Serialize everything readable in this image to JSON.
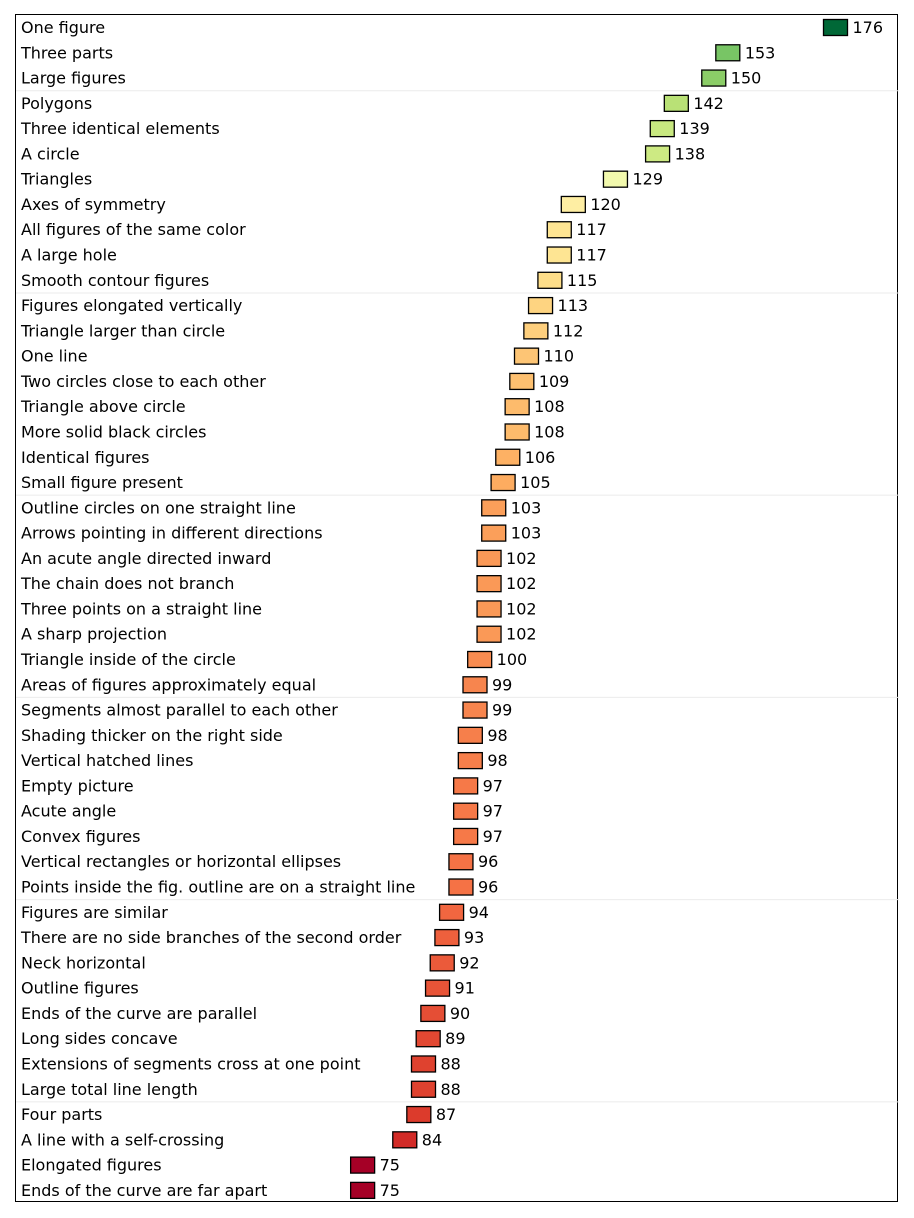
{
  "chart_data": {
    "type": "bar",
    "orientation": "horizontal",
    "title": "",
    "xlabel": "",
    "ylabel": "",
    "xlim": [
      0,
      176
    ],
    "categories": [
      "One figure",
      "Three parts",
      "Large figures",
      "Polygons",
      "Three identical elements",
      "A circle",
      "Triangles",
      "Axes of symmetry",
      "All figures of the same color",
      "A large hole",
      "Smooth contour figures",
      "Figures elongated vertically",
      "Triangle larger than circle",
      "One line",
      "Two circles close to each other",
      "Triangle above circle",
      "More solid black circles",
      "Identical figures",
      "Small figure present",
      "Outline circles on one straight line",
      "Arrows pointing in different directions",
      "An acute angle directed inward",
      "The chain does not branch",
      "Three points on a straight line",
      "A sharp projection",
      "Triangle inside of the circle",
      "Areas of figures approximately equal",
      "Segments almost parallel to each other",
      "Shading thicker on the right side",
      "Vertical hatched lines",
      "Empty picture",
      "Acute angle",
      "Convex figures",
      "Vertical rectangles or horizontal ellipses",
      "Points inside the fig. outline are on a straight line",
      "Figures are similar",
      "There are no side branches of the second order",
      "Neck horizontal",
      "Outline figures",
      "Ends of the curve are parallel",
      "Long sides concave",
      "Extensions of segments cross at one point",
      "Large total line length",
      "Four parts",
      "A line with a self-crossing",
      "Elongated figures",
      "Ends of the curve are far apart"
    ],
    "values": [
      176,
      153,
      150,
      142,
      139,
      138,
      129,
      120,
      117,
      117,
      115,
      113,
      112,
      110,
      109,
      108,
      108,
      106,
      105,
      103,
      103,
      102,
      102,
      102,
      102,
      100,
      99,
      99,
      98,
      98,
      97,
      97,
      97,
      96,
      96,
      94,
      93,
      92,
      91,
      90,
      89,
      88,
      88,
      87,
      84,
      75,
      75
    ],
    "colormap": [
      "#a50026",
      "#d73027",
      "#f46d43",
      "#fdae61",
      "#fee08b",
      "#ffffbf",
      "#d9ef8b",
      "#a6d96a",
      "#66bd63",
      "#1a9850",
      "#006837"
    ],
    "grid": true,
    "legend": "none"
  }
}
